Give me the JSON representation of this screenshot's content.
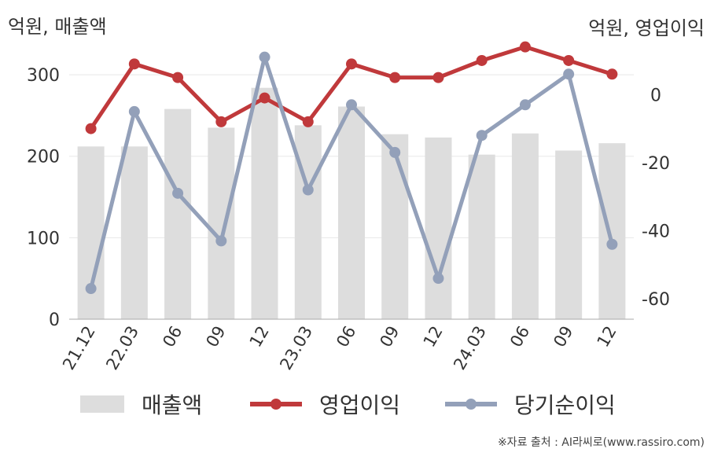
{
  "unit_left": "억원, 매출액",
  "unit_right": "억원, 영업이익",
  "source": "※자료 출처 : AI라씨로(www.rassiro.com)",
  "colors": {
    "revenue": "#dddddd",
    "operating": "#c0393b",
    "net": "#93a0b9",
    "grid": "#e8e8e8",
    "axis": "#aaaaaa"
  },
  "chart_data": {
    "type": "bar",
    "categories": [
      "21.12",
      "22.03",
      "06",
      "09",
      "12",
      "23.03",
      "06",
      "09",
      "12",
      "24.03",
      "06",
      "09",
      "12"
    ],
    "y_left": {
      "ticks": [
        0,
        100,
        200,
        300
      ],
      "range": [
        0,
        330
      ]
    },
    "y_right": {
      "ticks": [
        0,
        -20,
        -40,
        -60
      ],
      "range": [
        -66,
        13
      ]
    },
    "grid": true,
    "legend_position": "bottom",
    "series": [
      {
        "name": "매출액",
        "kind": "bar",
        "axis": "left",
        "values": [
          212,
          212,
          258,
          235,
          284,
          238,
          261,
          227,
          223,
          202,
          228,
          207,
          216
        ]
      },
      {
        "name": "영업이익",
        "kind": "line",
        "axis": "right",
        "values": [
          -10,
          9,
          5,
          -8,
          -1,
          -8,
          9,
          5,
          5,
          10,
          14,
          10,
          6
        ]
      },
      {
        "name": "당기순이익",
        "kind": "line",
        "axis": "right",
        "values": [
          -57,
          -5,
          -29,
          -43,
          11,
          -28,
          -3,
          -17,
          -54,
          -12,
          -3,
          6,
          -44
        ]
      }
    ]
  }
}
